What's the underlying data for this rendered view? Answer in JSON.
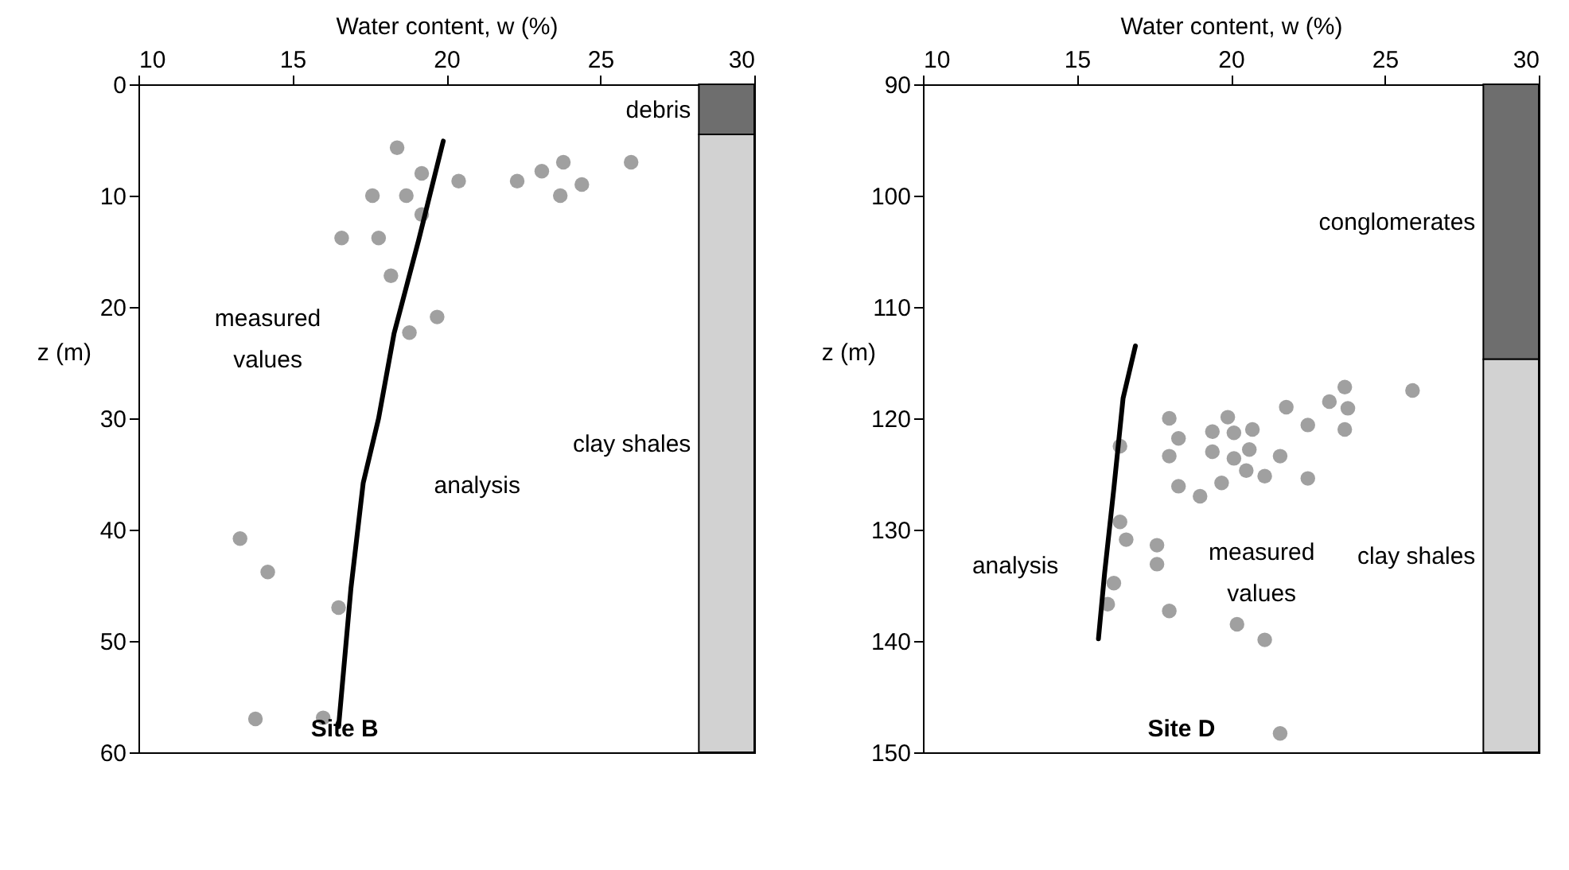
{
  "chart_data": [
    {
      "type": "scatter",
      "title": "Site B",
      "xlabel": "Water content, w (%)",
      "ylabel": "z (m)",
      "xlim": [
        10,
        30
      ],
      "ylim": [
        60,
        0
      ],
      "xticks": [
        10,
        15,
        20,
        25,
        30
      ],
      "yticks": [
        0,
        10,
        20,
        30,
        40,
        50,
        60
      ],
      "grid": false,
      "series": [
        {
          "type": "scatter",
          "marker": "circle",
          "color": "#a0a0a0",
          "x": [
            18.4,
            19.2,
            20.4,
            22.3,
            23.1,
            23.8,
            24.4,
            23.7,
            26.0,
            17.6,
            18.7,
            19.2,
            16.6,
            17.8,
            18.2,
            19.7,
            18.8,
            13.3,
            14.2,
            16.5,
            13.8,
            16.0
          ],
          "values": [
            5.7,
            8.0,
            8.7,
            8.7,
            7.8,
            7.0,
            9.0,
            10.0,
            7.0,
            10.0,
            10.0,
            11.7,
            13.8,
            13.8,
            17.2,
            20.9,
            22.3,
            40.8,
            43.8,
            47.0,
            57.0,
            56.9
          ]
        },
        {
          "type": "line",
          "line_style": "solid",
          "color": "#000000",
          "x": [
            19.9,
            19.1,
            18.3,
            17.8,
            17.3,
            16.9,
            16.5
          ],
          "values": [
            5.1,
            14,
            22.4,
            30,
            35.8,
            45.3,
            57.7
          ]
        }
      ],
      "bands": [
        {
          "axis": "y",
          "from": 0,
          "to": 4.5,
          "label": "debris",
          "color": "#6e6e6e"
        },
        {
          "axis": "y",
          "from": 4.5,
          "to": 60,
          "label": "clay shales",
          "color": "#d2d2d2"
        }
      ],
      "annotations": [
        "measured values",
        "analysis"
      ]
    },
    {
      "type": "scatter",
      "title": "Site D",
      "xlabel": "Water content, w (%)",
      "ylabel": "z (m)",
      "xlim": [
        10,
        30
      ],
      "ylim": [
        150,
        90
      ],
      "xticks": [
        10,
        15,
        20,
        25,
        30
      ],
      "yticks": [
        90,
        100,
        110,
        120,
        130,
        140,
        150
      ],
      "grid": false,
      "series": [
        {
          "type": "scatter",
          "marker": "circle",
          "color": "#a0a0a0",
          "x": [
            23.7,
            25.9,
            23.2,
            23.8,
            21.8,
            18.0,
            19.9,
            22.5,
            19.4,
            20.1,
            20.7,
            23.7,
            18.3,
            16.4,
            18.0,
            19.4,
            20.6,
            20.1,
            21.6,
            20.5,
            21.1,
            22.5,
            18.3,
            19.7,
            19.0,
            16.4,
            16.6,
            17.6,
            17.6,
            16.2,
            16.0,
            18.0,
            20.2,
            21.1,
            21.6
          ],
          "values": [
            117.2,
            117.5,
            118.5,
            119.1,
            119.0,
            120.0,
            119.9,
            120.6,
            121.2,
            121.3,
            121.0,
            121.0,
            121.8,
            122.5,
            123.4,
            123.0,
            122.8,
            123.6,
            123.4,
            124.7,
            125.2,
            125.4,
            126.1,
            125.8,
            127.0,
            129.3,
            130.9,
            131.4,
            133.1,
            134.8,
            136.7,
            137.3,
            138.5,
            139.9,
            148.3
          ]
        },
        {
          "type": "line",
          "line_style": "solid",
          "color": "#000000",
          "x": [
            16.9,
            16.5,
            16.2,
            15.9,
            15.7
          ],
          "values": [
            113.5,
            118.2,
            126.3,
            133.9,
            139.8
          ]
        }
      ],
      "bands": [
        {
          "axis": "y",
          "from": 90,
          "to": 114.7,
          "label": "conglomerates",
          "color": "#6e6e6e"
        },
        {
          "axis": "y",
          "from": 114.7,
          "to": 150,
          "label": "clay shales",
          "color": "#d2d2d2"
        }
      ],
      "annotations": [
        "measured values",
        "analysis"
      ]
    }
  ]
}
